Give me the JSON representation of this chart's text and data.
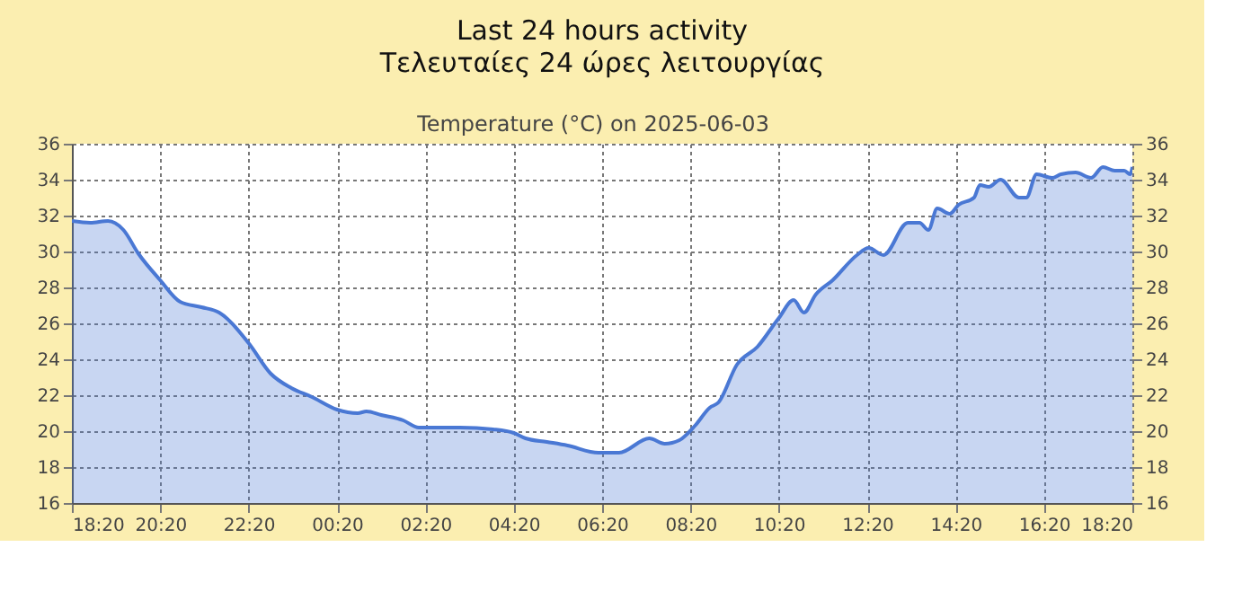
{
  "chart_data": {
    "type": "area",
    "title": "Last 24 hours activity",
    "subtitle": "Τελευταίες 24 ώρες λειτουργίας",
    "annotations": [
      "Temperature (°C) on 2025-06-03"
    ],
    "x": [
      "2025-06-02T18:20",
      "2025-06-02T18:45",
      "2025-06-02T19:09",
      "2025-06-02T19:30",
      "2025-06-02T19:50",
      "2025-06-02T20:20",
      "2025-06-02T20:47",
      "2025-06-02T21:16",
      "2025-06-02T21:40",
      "2025-06-02T22:20",
      "2025-06-02T22:50",
      "2025-06-02T23:18",
      "2025-06-02T23:46",
      "2025-06-03T00:20",
      "2025-06-03T00:48",
      "2025-06-03T01:00",
      "2025-06-03T01:20",
      "2025-06-03T01:50",
      "2025-06-03T02:11",
      "2025-06-03T03:07",
      "2025-06-03T03:52",
      "2025-06-03T04:20",
      "2025-06-03T04:36",
      "2025-06-03T05:05",
      "2025-06-03T05:33",
      "2025-06-03T06:15",
      "2025-06-03T06:43",
      "2025-06-03T07:24",
      "2025-06-03T07:45",
      "2025-06-03T08:05",
      "2025-06-03T08:26",
      "2025-06-03T08:46",
      "2025-06-03T08:58",
      "2025-06-03T09:23",
      "2025-06-03T09:51",
      "2025-06-03T10:20",
      "2025-06-03T10:40",
      "2025-06-03T10:54",
      "2025-06-03T11:10",
      "2025-06-03T11:33",
      "2025-06-03T12:06",
      "2025-06-03T12:22",
      "2025-06-03T12:42",
      "2025-06-03T13:15",
      "2025-06-03T13:31",
      "2025-06-03T13:43",
      "2025-06-03T13:55",
      "2025-06-03T14:12",
      "2025-06-03T14:24",
      "2025-06-03T14:45",
      "2025-06-03T14:53",
      "2025-06-03T15:05",
      "2025-06-03T15:21",
      "2025-06-03T15:46",
      "2025-06-03T15:56",
      "2025-06-03T16:10",
      "2025-06-03T16:31",
      "2025-06-03T16:43",
      "2025-06-03T17:03",
      "2025-06-03T17:24",
      "2025-06-03T17:40",
      "2025-06-03T17:56",
      "2025-06-03T18:09",
      "2025-06-03T18:17",
      "2025-06-03T18:20"
    ],
    "series": [
      {
        "color": "#4a78d4",
        "values": [
          31.7,
          31.6,
          31.7,
          31.2,
          29.9,
          28.4,
          27.2,
          26.9,
          26.6,
          24.9,
          23.2,
          22.4,
          21.9,
          21.2,
          21.0,
          21.1,
          20.9,
          20.6,
          20.2,
          20.2,
          20.1,
          19.9,
          19.6,
          19.4,
          19.2,
          18.8,
          18.8,
          19.6,
          19.3,
          19.5,
          20.3,
          21.3,
          21.6,
          23.7,
          24.7,
          26.3,
          27.3,
          26.6,
          27.6,
          28.4,
          29.8,
          30.2,
          29.8,
          31.6,
          31.6,
          31.2,
          32.4,
          32.1,
          32.6,
          33.0,
          33.7,
          33.6,
          34.0,
          33.0,
          33.0,
          34.3,
          34.1,
          34.3,
          34.4,
          34.1,
          34.7,
          34.5,
          34.5,
          34.3,
          34.7
        ]
      }
    ],
    "xlim": [
      "2025-06-02T18:20",
      "2025-06-03T18:20"
    ],
    "xticks": [
      {
        "value": "2025-06-02T18:20",
        "label": "18:20"
      },
      {
        "value": "2025-06-02T20:20",
        "label": "20:20"
      },
      {
        "value": "2025-06-02T22:20",
        "label": "22:20"
      },
      {
        "value": "2025-06-03T00:20",
        "label": "00:20"
      },
      {
        "value": "2025-06-03T02:20",
        "label": "02:20"
      },
      {
        "value": "2025-06-03T04:20",
        "label": "04:20"
      },
      {
        "value": "2025-06-03T06:20",
        "label": "06:20"
      },
      {
        "value": "2025-06-03T08:20",
        "label": "08:20"
      },
      {
        "value": "2025-06-03T10:20",
        "label": "10:20"
      },
      {
        "value": "2025-06-03T12:20",
        "label": "12:20"
      },
      {
        "value": "2025-06-03T14:20",
        "label": "14:20"
      },
      {
        "value": "2025-06-03T16:20",
        "label": "16:20"
      },
      {
        "value": "2025-06-03T18:20",
        "label": "18:20"
      }
    ],
    "ylim": [
      16,
      36
    ],
    "yticks": [
      16,
      18,
      20,
      22,
      24,
      26,
      28,
      30,
      32,
      34,
      36
    ],
    "y2lim": [
      16,
      36
    ],
    "y2ticks": [
      16,
      18,
      20,
      22,
      24,
      26,
      28,
      30,
      32,
      34,
      36
    ],
    "grid": true
  }
}
